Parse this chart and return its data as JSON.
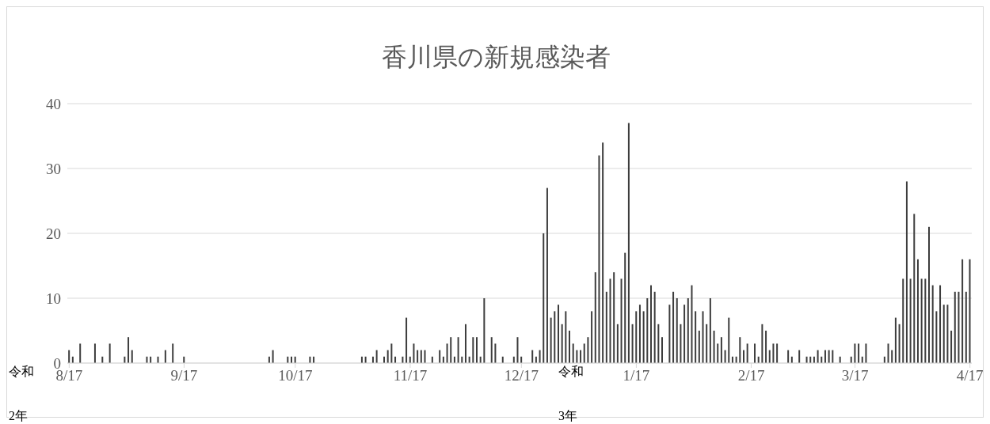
{
  "chart_data": {
    "type": "bar",
    "title": "香川県の新規感染者",
    "categories": [
      "8/17",
      null,
      null,
      null,
      null,
      null,
      null,
      null,
      null,
      null,
      null,
      null,
      null,
      null,
      null,
      null,
      null,
      null,
      null,
      null,
      null,
      null,
      null,
      null,
      null,
      null,
      null,
      null,
      null,
      null,
      null,
      "9/17",
      null,
      null,
      null,
      null,
      null,
      null,
      null,
      null,
      null,
      null,
      null,
      null,
      null,
      null,
      null,
      null,
      null,
      null,
      null,
      null,
      null,
      null,
      null,
      null,
      null,
      null,
      null,
      null,
      null,
      "10/17",
      null,
      null,
      null,
      null,
      null,
      null,
      null,
      null,
      null,
      null,
      null,
      null,
      null,
      null,
      null,
      null,
      null,
      null,
      null,
      null,
      null,
      null,
      null,
      null,
      null,
      null,
      null,
      null,
      null,
      null,
      "11/17",
      null,
      null,
      null,
      null,
      null,
      null,
      null,
      null,
      null,
      null,
      null,
      null,
      null,
      null,
      null,
      null,
      null,
      null,
      null,
      null,
      null,
      null,
      null,
      null,
      null,
      null,
      null,
      null,
      null,
      "12/17",
      null,
      null,
      null,
      null,
      null,
      null,
      null,
      null,
      null,
      null,
      null,
      null,
      null,
      null,
      null,
      null,
      null,
      null,
      null,
      null,
      null,
      null,
      null,
      null,
      null,
      null,
      null,
      null,
      null,
      null,
      "1/17",
      null,
      null,
      null,
      null,
      null,
      null,
      null,
      null,
      null,
      null,
      null,
      null,
      null,
      null,
      null,
      null,
      null,
      null,
      null,
      null,
      null,
      null,
      null,
      null,
      null,
      null,
      null,
      null,
      null,
      null,
      "2/17",
      null,
      null,
      null,
      null,
      null,
      null,
      null,
      null,
      null,
      null,
      null,
      null,
      null,
      null,
      null,
      null,
      null,
      null,
      null,
      null,
      null,
      null,
      null,
      null,
      null,
      null,
      null,
      "3/17",
      null,
      null,
      null,
      null,
      null,
      null,
      null,
      null,
      null,
      null,
      null,
      null,
      null,
      null,
      null,
      null,
      null,
      null,
      null,
      null,
      null,
      null,
      null,
      null,
      null,
      null,
      null,
      null,
      null,
      null,
      "4/17"
    ],
    "values": [
      2,
      1,
      0,
      3,
      0,
      0,
      0,
      3,
      0,
      1,
      0,
      3,
      0,
      0,
      0,
      1,
      4,
      2,
      0,
      0,
      0,
      1,
      1,
      0,
      1,
      0,
      2,
      0,
      3,
      0,
      0,
      1,
      0,
      0,
      0,
      0,
      0,
      0,
      0,
      0,
      0,
      0,
      0,
      0,
      0,
      0,
      0,
      0,
      0,
      0,
      0,
      0,
      0,
      0,
      1,
      2,
      0,
      0,
      0,
      1,
      1,
      1,
      0,
      0,
      0,
      1,
      1,
      0,
      0,
      0,
      0,
      0,
      0,
      0,
      0,
      0,
      0,
      0,
      0,
      1,
      1,
      0,
      1,
      2,
      0,
      1,
      2,
      3,
      1,
      0,
      1,
      7,
      1,
      3,
      2,
      2,
      2,
      0,
      1,
      0,
      2,
      1,
      3,
      4,
      1,
      4,
      1,
      6,
      1,
      4,
      4,
      1,
      10,
      0,
      4,
      3,
      0,
      1,
      0,
      0,
      1,
      4,
      1,
      0,
      0,
      2,
      1,
      2,
      20,
      27,
      7,
      8,
      9,
      6,
      8,
      5,
      3,
      2,
      2,
      3,
      4,
      8,
      14,
      32,
      34,
      11,
      13,
      14,
      6,
      13,
      17,
      37,
      6,
      8,
      9,
      8,
      10,
      12,
      11,
      6,
      4,
      0,
      9,
      11,
      10,
      6,
      9,
      10,
      12,
      8,
      5,
      8,
      6,
      10,
      5,
      3,
      4,
      2,
      7,
      1,
      1,
      4,
      2,
      3,
      0,
      3,
      1,
      6,
      5,
      2,
      3,
      3,
      0,
      0,
      2,
      1,
      0,
      2,
      0,
      1,
      1,
      1,
      2,
      1,
      2,
      2,
      2,
      0,
      1,
      0,
      0,
      1,
      3,
      3,
      1,
      3,
      0,
      0,
      0,
      0,
      1,
      3,
      2,
      7,
      6,
      13,
      28,
      13,
      23,
      16,
      13,
      13,
      21,
      12,
      8,
      12,
      9,
      9,
      5,
      11,
      11,
      16,
      11,
      16
    ],
    "color": "#3c3c3c",
    "ylim": [
      0,
      40
    ],
    "yticks": [
      0,
      10,
      20,
      30,
      40
    ],
    "grid": "y",
    "legend": false,
    "annotations": [
      "令和\n2年",
      "令和\n3年"
    ]
  }
}
